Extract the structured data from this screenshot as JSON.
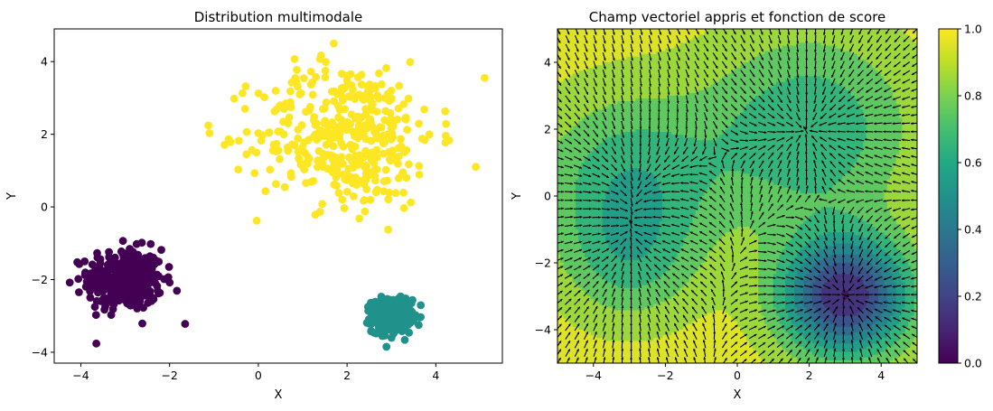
{
  "chart_data": [
    {
      "type": "scatter",
      "title": "Distribution multimodale",
      "xlabel": "X",
      "ylabel": "Y",
      "xlim": [
        -4.6,
        5.5
      ],
      "ylim": [
        -4.3,
        4.9
      ],
      "xticks": [
        -4,
        -2,
        0,
        2,
        4
      ],
      "yticks": [
        -4,
        -2,
        0,
        2,
        4
      ],
      "grid": false,
      "clusters": [
        {
          "label": "cluster-purple",
          "color": "#440154",
          "center": [
            -3.0,
            -2.0
          ],
          "std": [
            0.42,
            0.42
          ],
          "count": 400
        },
        {
          "label": "cluster-teal",
          "color": "#21918c",
          "center": [
            3.0,
            -3.0
          ],
          "std": [
            0.22,
            0.22
          ],
          "count": 400
        },
        {
          "label": "cluster-yellow",
          "color": "#fde725",
          "center": [
            2.0,
            2.0
          ],
          "std": [
            1.0,
            1.0
          ],
          "count": 400
        }
      ],
      "outliers": [
        {
          "x": -1.65,
          "y": -3.22,
          "color": "#440154"
        },
        {
          "x": -4.25,
          "y": -2.08,
          "color": "#440154"
        },
        {
          "x": -1.1,
          "y": 2.03,
          "color": "#fde725"
        },
        {
          "x": 5.1,
          "y": 3.55,
          "color": "#fde725"
        },
        {
          "x": 1.7,
          "y": 4.5,
          "color": "#fde725"
        },
        {
          "x": 4.9,
          "y": 1.1,
          "color": "#fde725"
        },
        {
          "x": -0.3,
          "y": 2.7,
          "color": "#fde725"
        }
      ]
    },
    {
      "type": "heatmap",
      "subtype": "filled-contour-with-quiver",
      "title": "Champ vectoriel appris et fonction de score",
      "xlabel": "X",
      "ylabel": "Y",
      "xlim": [
        -5,
        5
      ],
      "ylim": [
        -5,
        5
      ],
      "xticks": [
        -4,
        -2,
        0,
        2,
        4
      ],
      "yticks": [
        -4,
        -2,
        0,
        2,
        4
      ],
      "colormap": "viridis",
      "colorbar": {
        "min": 0.0,
        "max": 1.0,
        "ticks": [
          "0.0",
          "0.2",
          "0.4",
          "0.6",
          "0.8",
          "1.0"
        ]
      },
      "score_wells": [
        {
          "center": [
            3.0,
            -3.0
          ],
          "depth": 0.84,
          "sigma": 1.25
        },
        {
          "center": [
            2.0,
            2.0
          ],
          "depth": 0.34,
          "sigma": 2.0
        },
        {
          "center": [
            -3.0,
            0.5
          ],
          "depth": 0.32,
          "sigma": 1.8
        },
        {
          "center": [
            -3.0,
            -2.0
          ],
          "depth": 0.22,
          "sigma": 1.3
        }
      ],
      "baseline": 0.95,
      "contour_levels": [
        0.0,
        0.1,
        0.2,
        0.3,
        0.4,
        0.5,
        0.6,
        0.7,
        0.8,
        0.9,
        1.0
      ],
      "vector_field": {
        "grid_count": 40,
        "color": "#000000"
      }
    }
  ]
}
